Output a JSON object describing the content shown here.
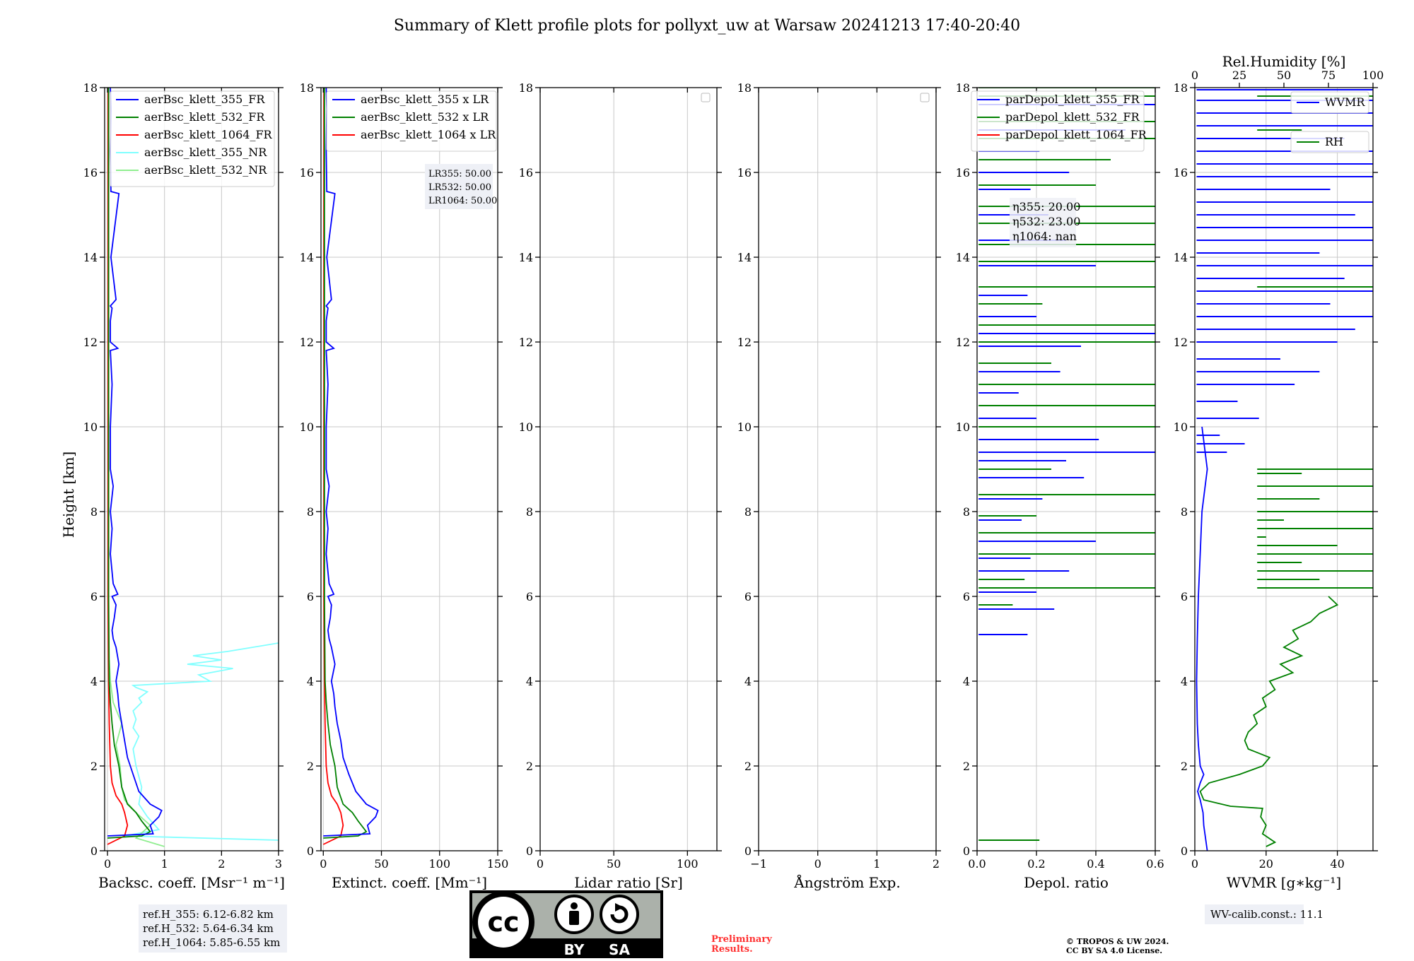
{
  "figure": {
    "title": "Summary of Klett profile plots for pollyxt_uw at Warsaw 20241213 17:40-20:40",
    "y_label": "Height [km]",
    "y_ticks": [
      "0",
      "2",
      "4",
      "6",
      "8",
      "10",
      "12",
      "14",
      "16",
      "18"
    ]
  },
  "chart_data": [
    {
      "type": "line",
      "id": "backscatter",
      "xlabel": "Backsc. coeff. [Msr⁻¹ m⁻¹]",
      "xlim": [
        -0.05,
        3
      ],
      "ylim": [
        0,
        18
      ],
      "x_ticks": [
        "0",
        "1",
        "2",
        "3"
      ],
      "x_tick_values": [
        0,
        1,
        2,
        3
      ],
      "legend": [
        {
          "label": "aerBsc_klett_355_FR",
          "color": "#0000ff"
        },
        {
          "label": "aerBsc_klett_532_FR",
          "color": "#008000"
        },
        {
          "label": "aerBsc_klett_1064_FR",
          "color": "#ff0000"
        },
        {
          "label": "aerBsc_klett_355_NR",
          "color": "#80ffff"
        },
        {
          "label": "aerBsc_klett_532_NR",
          "color": "#90ee90"
        }
      ],
      "series": [
        {
          "name": "aerBsc_klett_355_NR",
          "color": "#80ffff",
          "x": [
            3.0,
            0.3,
            0.9,
            0.7,
            0.55,
            0.6,
            0.5,
            0.45,
            0.55,
            0.45,
            0.5,
            0.45,
            0.6,
            0.55,
            0.7,
            0.5,
            0.45,
            1.8,
            1.6,
            2.2,
            1.4,
            2.0,
            1.5,
            2.1,
            3.0
          ],
          "y": [
            0.25,
            0.35,
            0.5,
            0.8,
            1.1,
            1.5,
            2.0,
            2.4,
            2.7,
            2.9,
            3.1,
            3.3,
            3.5,
            3.6,
            3.75,
            3.85,
            3.9,
            4.0,
            4.15,
            4.3,
            4.4,
            4.5,
            4.6,
            4.7,
            4.9
          ]
        },
        {
          "name": "aerBsc_klett_532_NR",
          "color": "#90ee90",
          "x": [
            1.0,
            0.5,
            0.75,
            0.5,
            0.3,
            0.25,
            0.22,
            0.15,
            0.25,
            0.1,
            0.05,
            0.03
          ],
          "y": [
            0.1,
            0.3,
            0.6,
            0.9,
            1.2,
            1.5,
            2.0,
            2.5,
            3.0,
            3.5,
            4.0,
            4.5
          ]
        },
        {
          "name": "aerBsc_klett_1064_FR",
          "color": "#ff0000",
          "x": [
            0,
            0.3,
            0.35,
            0.3,
            0.25,
            0.15,
            0.08,
            0.05,
            0.03,
            0.02,
            0.01,
            0.01,
            0.01
          ],
          "y": [
            0.15,
            0.35,
            0.6,
            0.9,
            1.1,
            1.3,
            1.6,
            2.0,
            3.0,
            4.0,
            6.0,
            10.0,
            18.0
          ]
        },
        {
          "name": "aerBsc_klett_532_FR",
          "color": "#008000",
          "x": [
            0,
            0.6,
            0.75,
            0.6,
            0.5,
            0.35,
            0.25,
            0.2,
            0.12,
            0.08,
            0.05,
            0.03,
            0.02,
            0.02,
            0.02
          ],
          "y": [
            0.3,
            0.35,
            0.45,
            0.7,
            0.9,
            1.1,
            1.5,
            2.0,
            2.5,
            3.0,
            3.5,
            4.0,
            6.0,
            10.0,
            18.0
          ]
        },
        {
          "name": "aerBsc_klett_355_FR",
          "color": "#0000ff",
          "x": [
            0,
            0.8,
            0.75,
            0.9,
            0.95,
            0.75,
            0.55,
            0.45,
            0.35,
            0.3,
            0.25,
            0.2,
            0.18,
            0.15,
            0.2,
            0.15,
            0.1,
            0.08,
            0.12,
            0.15,
            0.08,
            0.18,
            0.1,
            0.05,
            0.08,
            0.05,
            0.1,
            0.05,
            0.05,
            0.08,
            0.05,
            0.18,
            0.05,
            0.05,
            0.08,
            0.05,
            0.15,
            0.06,
            0.2,
            0.06,
            0.05,
            0.06,
            0.05
          ],
          "y": [
            0.35,
            0.4,
            0.6,
            0.8,
            0.95,
            1.1,
            1.4,
            1.8,
            2.2,
            2.6,
            3.0,
            3.4,
            3.7,
            4.0,
            4.4,
            4.8,
            5.0,
            5.2,
            5.5,
            5.8,
            6.0,
            6.05,
            6.3,
            7.0,
            7.6,
            8.0,
            8.6,
            9.0,
            10.0,
            11.0,
            11.8,
            11.85,
            12.0,
            12.5,
            12.8,
            12.85,
            13.0,
            14.0,
            15.5,
            15.55,
            16.5,
            17.5,
            18.0
          ]
        }
      ]
    },
    {
      "type": "line",
      "id": "extinction",
      "xlabel": "Extinct. coeff. [Mm⁻¹]",
      "xlim": [
        -2,
        150
      ],
      "ylim": [
        0,
        18
      ],
      "x_ticks": [
        "0",
        "50",
        "100",
        "150"
      ],
      "x_tick_values": [
        0,
        50,
        100,
        150
      ],
      "legend": [
        {
          "label": "aerBsc_klett_355 x LR",
          "color": "#0000ff"
        },
        {
          "label": "aerBsc_klett_532 x LR",
          "color": "#008000"
        },
        {
          "label": "aerBsc_klett_1064 x LR",
          "color": "#ff0000"
        }
      ],
      "annotation": [
        "LR355: 50.00",
        "LR532: 50.00",
        "LR1064: 50.00"
      ],
      "series": [
        {
          "name": "aerBsc_klett_1064 x LR",
          "color": "#ff0000",
          "x": [
            0,
            15,
            17,
            15,
            12,
            7,
            4,
            2.5,
            1.5,
            1,
            0.5,
            0.5,
            0.5
          ],
          "y": [
            0.15,
            0.35,
            0.6,
            0.9,
            1.1,
            1.3,
            1.6,
            2.0,
            3.0,
            4.0,
            6.0,
            10.0,
            18.0
          ]
        },
        {
          "name": "aerBsc_klett_532 x LR",
          "color": "#008000",
          "x": [
            0,
            30,
            37,
            30,
            25,
            17,
            12,
            10,
            6,
            4,
            2.5,
            1.5,
            1,
            1,
            1
          ],
          "y": [
            0.3,
            0.35,
            0.45,
            0.7,
            0.9,
            1.1,
            1.5,
            2.0,
            2.5,
            3.0,
            3.5,
            4.0,
            6.0,
            10.0,
            18.0
          ]
        },
        {
          "name": "aerBsc_klett_355 x LR",
          "color": "#0000ff",
          "x": [
            0,
            40,
            38,
            45,
            47,
            37,
            28,
            22,
            17,
            15,
            12,
            10,
            9,
            7,
            10,
            7,
            5,
            4,
            6,
            7,
            4,
            9,
            5,
            2.5,
            4,
            2.5,
            5,
            2.5,
            2.5,
            4,
            2.5,
            9,
            2.5,
            2.5,
            4,
            2.5,
            7,
            3,
            10,
            3,
            2.5,
            3,
            2.5
          ],
          "y": [
            0.35,
            0.4,
            0.6,
            0.8,
            0.95,
            1.1,
            1.4,
            1.8,
            2.2,
            2.6,
            3.0,
            3.4,
            3.7,
            4.0,
            4.4,
            4.8,
            5.0,
            5.2,
            5.5,
            5.8,
            6.0,
            6.05,
            6.3,
            7.0,
            7.6,
            8.0,
            8.6,
            9.0,
            10.0,
            11.0,
            11.8,
            11.85,
            12.0,
            12.5,
            12.8,
            12.85,
            13.0,
            14.0,
            15.5,
            15.55,
            16.5,
            17.5,
            18.0
          ]
        }
      ]
    },
    {
      "type": "line",
      "id": "lidar-ratio",
      "xlabel": "Lidar ratio [Sr]",
      "xlim": [
        0,
        120
      ],
      "ylim": [
        0,
        18
      ],
      "x_ticks": [
        "0",
        "50",
        "100"
      ],
      "x_tick_values": [
        0,
        50,
        100
      ],
      "series": []
    },
    {
      "type": "line",
      "id": "angstrom",
      "xlabel": "Ångström Exp.",
      "xlim": [
        -1,
        2
      ],
      "ylim": [
        0,
        18
      ],
      "x_ticks": [
        "−1",
        "0",
        "1",
        "2"
      ],
      "x_tick_values": [
        -1,
        0,
        1,
        2
      ],
      "series": []
    },
    {
      "type": "line",
      "id": "depol",
      "xlabel": "Depol. ratio",
      "xlim": [
        0,
        0.6
      ],
      "ylim": [
        0,
        18
      ],
      "x_ticks": [
        "0.0",
        "0.2",
        "0.4",
        "0.6"
      ],
      "x_tick_values": [
        0,
        0.2,
        0.4,
        0.6
      ],
      "legend": [
        {
          "label": "parDepol_klett_355_FR",
          "color": "#0000ff"
        },
        {
          "label": "parDepol_klett_532_FR",
          "color": "#008000"
        },
        {
          "label": "parDepol_klett_1064_FR",
          "color": "#ff0000"
        }
      ],
      "annotation": [
        "η355: 20.00",
        "η532: 23.00",
        "η1064: nan"
      ],
      "spikes_355": {
        "color": "#0000ff",
        "height": [
          5.1,
          5.7,
          6.1,
          6.6,
          6.9,
          7.3,
          7.8,
          8.3,
          8.8,
          9.2,
          9.4,
          9.7,
          10.2,
          10.8,
          11.3,
          11.9,
          12.2,
          12.6,
          13.1,
          13.8,
          14.4,
          15.0,
          15.6,
          16.0,
          16.5,
          17.0,
          17.6
        ],
        "value": [
          0.17,
          0.26,
          0.2,
          0.31,
          0.18,
          0.4,
          0.15,
          0.22,
          0.36,
          0.3,
          0.6,
          0.41,
          0.2,
          0.14,
          0.28,
          0.35,
          0.6,
          0.2,
          0.17,
          0.4,
          0.3,
          0.24,
          0.18,
          0.31,
          0.21,
          0.5,
          0.6
        ]
      },
      "spikes_532": {
        "color": "#008000",
        "height": [
          0.25,
          5.8,
          6.2,
          6.4,
          7.0,
          7.5,
          7.9,
          8.4,
          9.0,
          9.4,
          10.0,
          10.5,
          11.0,
          11.5,
          12.0,
          12.4,
          12.9,
          13.3,
          13.9,
          14.3,
          14.8,
          15.2,
          15.7,
          16.3,
          16.8,
          17.2,
          17.8,
          18.0
        ],
        "value": [
          0.21,
          0.12,
          0.6,
          0.16,
          0.6,
          0.6,
          0.2,
          0.6,
          0.25,
          0.6,
          0.6,
          0.6,
          0.6,
          0.25,
          0.6,
          0.6,
          0.22,
          0.6,
          0.6,
          0.6,
          0.6,
          0.6,
          0.4,
          0.45,
          0.6,
          0.6,
          0.6,
          0.6
        ]
      }
    },
    {
      "type": "line",
      "id": "wvmr",
      "xlabel": "WVMR [g∗kg⁻¹]",
      "top_label": "Rel.Humidity [%]",
      "xlim": [
        0,
        50
      ],
      "top_xlim": [
        0,
        100
      ],
      "ylim": [
        0,
        18
      ],
      "x_ticks": [
        "0",
        "20",
        "40"
      ],
      "x_tick_values": [
        0,
        20,
        40
      ],
      "top_ticks": [
        "0",
        "25",
        "50",
        "75",
        "100"
      ],
      "top_tick_values": [
        0,
        25,
        50,
        75,
        100
      ],
      "legend": [
        {
          "label": "WVMR",
          "color": "#0000ff"
        },
        {
          "label": "RH",
          "color": "#008000"
        }
      ],
      "annotation": "WV-calib.const.: 11.1",
      "rh_profile": {
        "color": "#008000",
        "height": [
          0.1,
          0.2,
          0.4,
          0.6,
          0.8,
          1.0,
          1.05,
          1.2,
          1.4,
          1.6,
          1.8,
          2.0,
          2.2,
          2.4,
          2.6,
          2.8,
          3.0,
          3.2,
          3.4,
          3.6,
          3.8,
          4.0,
          4.2,
          4.4,
          4.6,
          4.8,
          5.0,
          5.2,
          5.4,
          5.6,
          5.8,
          6.0
        ],
        "value": [
          40,
          45,
          38,
          40,
          37,
          38,
          20,
          5,
          3,
          8,
          25,
          38,
          42,
          30,
          28,
          30,
          35,
          33,
          40,
          38,
          45,
          42,
          55,
          48,
          60,
          50,
          58,
          55,
          65,
          70,
          80,
          75
        ]
      },
      "rh_spikes": {
        "color": "#008000",
        "height": [
          6.2,
          6.4,
          6.6,
          6.8,
          7.0,
          7.2,
          7.4,
          7.6,
          7.8,
          8.0,
          8.3,
          8.6,
          8.9,
          9.0,
          13.3,
          16.5,
          17.0,
          17.8
        ],
        "value": [
          100,
          70,
          100,
          60,
          100,
          80,
          40,
          100,
          50,
          100,
          70,
          100,
          60,
          100,
          100,
          100,
          60,
          100
        ]
      },
      "wvmr_profile": {
        "color": "#0000ff",
        "height": [
          0.0,
          0.3,
          0.6,
          0.9,
          1.2,
          1.4,
          1.6,
          1.8,
          2.0,
          2.5,
          3.0,
          4.0,
          5.0,
          6.0,
          7.0,
          8.0,
          9.0,
          10.0
        ],
        "value": [
          3.5,
          3.0,
          2.5,
          2.3,
          1.5,
          0.8,
          1.5,
          2.5,
          1.5,
          1.0,
          0.7,
          0.5,
          0.7,
          1.0,
          1.5,
          2.0,
          3.5,
          2.0
        ]
      },
      "wvmr_spikes": {
        "color": "#0000ff",
        "height": [
          9.4,
          9.6,
          9.8,
          10.2,
          10.6,
          11.0,
          11.3,
          11.6,
          12.0,
          12.3,
          12.6,
          12.9,
          13.2,
          13.5,
          13.8,
          14.1,
          14.4,
          14.7,
          15.0,
          15.3,
          15.6,
          15.9,
          16.2,
          16.5,
          16.8,
          17.1,
          17.4,
          17.7,
          17.95
        ],
        "value": [
          9,
          14,
          7,
          18,
          12,
          28,
          35,
          24,
          40,
          45,
          50,
          38,
          50,
          42,
          50,
          35,
          50,
          50,
          45,
          50,
          38,
          50,
          50,
          50,
          42,
          50,
          50,
          50,
          50
        ]
      }
    }
  ],
  "footer": {
    "ref_heights": [
      "ref.H_355: 6.12-6.82 km",
      "ref.H_532: 5.64-6.34 km",
      "ref.H_1064: 5.85-6.55 km"
    ],
    "license_badge": {
      "cc": "cc",
      "by": "BY",
      "sa": "SA"
    },
    "preliminary": [
      "Preliminary",
      "Results."
    ],
    "copyright": [
      "© TROPOS & UW 2024.",
      "CC BY SA 4.0 License."
    ]
  }
}
